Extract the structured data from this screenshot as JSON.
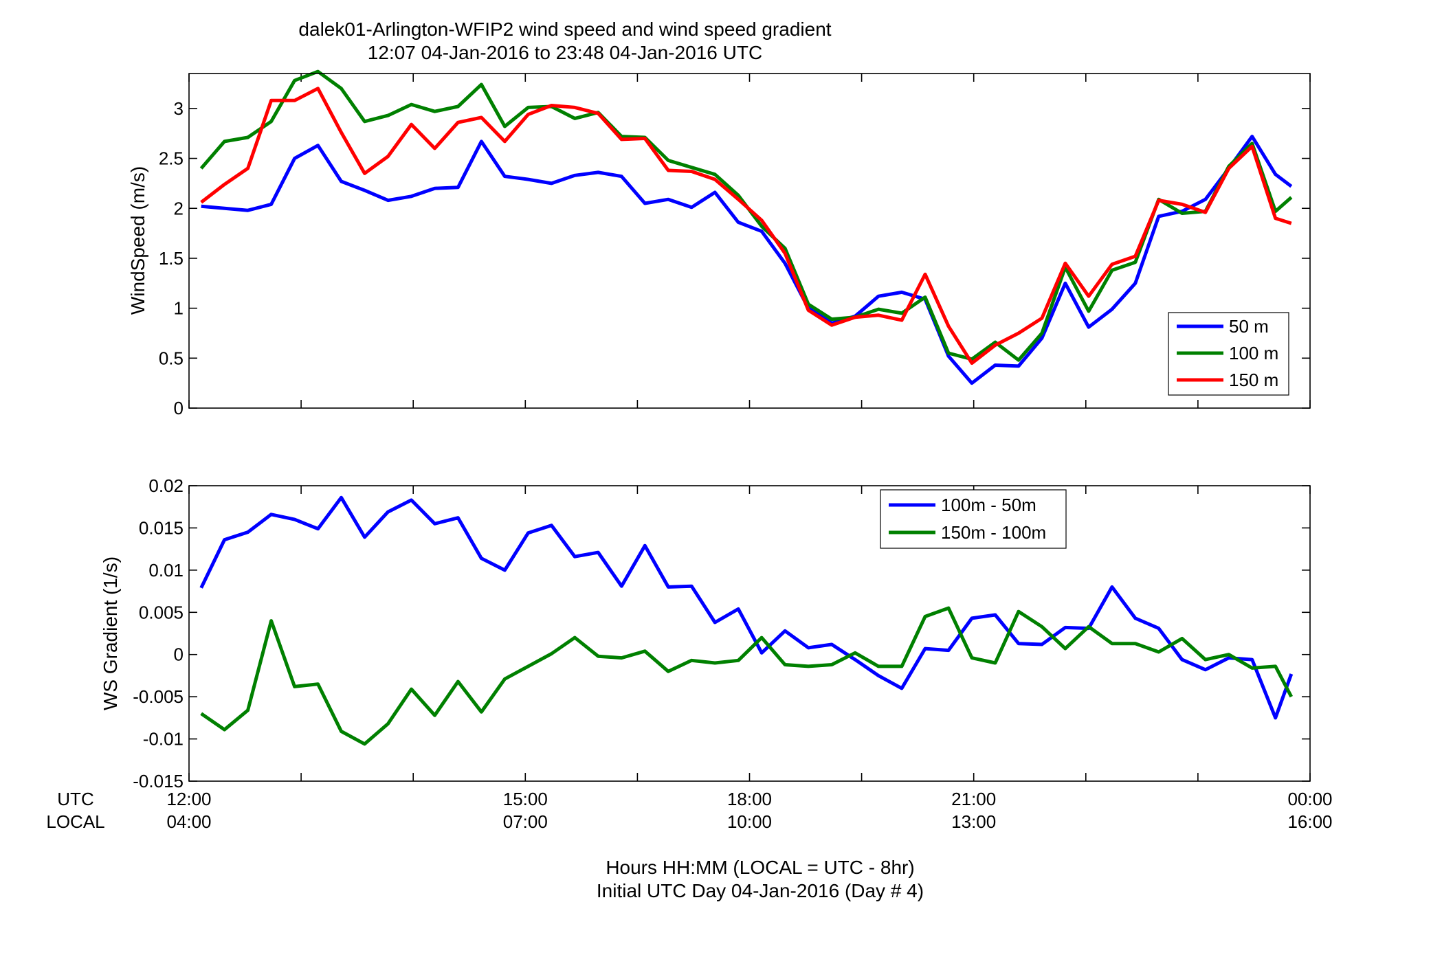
{
  "figure": {
    "title_lines": [
      "dalek01-Arlington-WFIP2  wind speed and wind speed gradient",
      "12:07 04-Jan-2016 to 23:48 04-Jan-2016  UTC"
    ],
    "xlabel_lines": [
      "Hours HH:MM  (LOCAL = UTC - 8hr)",
      "Initial UTC Day 04-Jan-2016 (Day # 4)"
    ],
    "row_labels": [
      "UTC",
      "LOCAL"
    ]
  },
  "chart_data": [
    {
      "type": "line",
      "ylabel": "WindSpeed (m/s)",
      "xlim": [
        12,
        24
      ],
      "ylim": [
        0,
        3.35
      ],
      "yticks": [
        0,
        0.5,
        1,
        1.5,
        2,
        2.5,
        3
      ],
      "ytick_labels": [
        "0",
        "0.5",
        "1",
        "1.5",
        "2",
        "2.5",
        "3"
      ],
      "xticks_utc": [
        12,
        13.2,
        14.4,
        15.6,
        16.8,
        18,
        19.2,
        20.4,
        21.6,
        22.8,
        24
      ],
      "xtick_labels_utc": [
        "12:00",
        "",
        "",
        "15:00",
        "",
        "18:00",
        "",
        "21:00",
        "",
        "",
        "00:00"
      ],
      "xtick_labels_local": [
        "04:00",
        "",
        "",
        "07:00",
        "",
        "10:00",
        "",
        "13:00",
        "",
        "",
        "16:00"
      ],
      "legend_position": "bottom-right",
      "x": [
        12.13,
        12.38,
        12.63,
        12.88,
        13.13,
        13.38,
        13.63,
        13.88,
        14.13,
        14.38,
        14.63,
        14.88,
        15.13,
        15.38,
        15.63,
        15.88,
        16.13,
        16.38,
        16.63,
        16.88,
        17.13,
        17.38,
        17.63,
        17.88,
        18.13,
        18.38,
        18.63,
        18.88,
        19.13,
        19.38,
        19.63,
        19.88,
        20.13,
        20.38,
        20.63,
        20.88,
        21.13,
        21.38,
        21.63,
        21.88,
        22.13,
        22.38,
        22.63,
        22.88,
        23.13,
        23.38,
        23.63,
        23.8
      ],
      "series": [
        {
          "name": "50 m",
          "color": "#0000ff",
          "values": [
            2.02,
            2.0,
            1.98,
            2.04,
            2.5,
            2.63,
            2.27,
            2.18,
            2.08,
            2.12,
            2.2,
            2.21,
            2.67,
            2.32,
            2.29,
            2.25,
            2.33,
            2.36,
            2.32,
            2.05,
            2.09,
            2.01,
            2.16,
            1.86,
            1.77,
            1.45,
            1.0,
            0.85,
            0.92,
            1.12,
            1.16,
            1.09,
            0.52,
            0.25,
            0.43,
            0.42,
            0.7,
            1.25,
            0.81,
            0.99,
            1.25,
            1.92,
            1.97,
            2.09,
            2.4,
            2.72,
            2.34,
            2.22
          ]
        },
        {
          "name": "100 m",
          "color": "#008000",
          "values": [
            2.4,
            2.67,
            2.71,
            2.87,
            3.28,
            3.37,
            3.2,
            2.87,
            2.93,
            3.04,
            2.97,
            3.02,
            3.24,
            2.82,
            3.01,
            3.02,
            2.9,
            2.96,
            2.72,
            2.71,
            2.48,
            2.41,
            2.34,
            2.13,
            1.82,
            1.6,
            1.04,
            0.89,
            0.91,
            0.99,
            0.95,
            1.11,
            0.55,
            0.49,
            0.66,
            0.48,
            0.75,
            1.41,
            0.97,
            1.38,
            1.46,
            2.09,
            1.95,
            1.97,
            2.42,
            2.65,
            1.97,
            2.11
          ]
        },
        {
          "name": "150 m",
          "color": "#ff0000",
          "values": [
            2.06,
            2.24,
            2.4,
            3.08,
            3.08,
            3.2,
            2.76,
            2.35,
            2.52,
            2.84,
            2.6,
            2.86,
            2.91,
            2.67,
            2.94,
            3.03,
            3.01,
            2.95,
            2.69,
            2.7,
            2.38,
            2.37,
            2.29,
            2.09,
            1.88,
            1.55,
            0.98,
            0.83,
            0.91,
            0.93,
            0.88,
            1.34,
            0.82,
            0.45,
            0.63,
            0.75,
            0.9,
            1.45,
            1.12,
            1.44,
            1.52,
            2.08,
            2.04,
            1.96,
            2.4,
            2.62,
            1.9,
            1.85
          ]
        }
      ]
    },
    {
      "type": "line",
      "ylabel": "WS Gradient (1/s)",
      "xlim": [
        12,
        24
      ],
      "ylim": [
        -0.015,
        0.02
      ],
      "yticks": [
        -0.015,
        -0.01,
        -0.005,
        0,
        0.005,
        0.01,
        0.015,
        0.02
      ],
      "ytick_labels": [
        "-0.015",
        "-0.01",
        "-0.005",
        "0",
        "0.005",
        "0.01",
        "0.015",
        "0.02"
      ],
      "xticks_utc": [
        12,
        13.2,
        14.4,
        15.6,
        16.8,
        18,
        19.2,
        20.4,
        21.6,
        22.8,
        24
      ],
      "legend_position": "top-right",
      "x": [
        12.13,
        12.38,
        12.63,
        12.88,
        13.13,
        13.38,
        13.63,
        13.88,
        14.13,
        14.38,
        14.63,
        14.88,
        15.13,
        15.38,
        15.63,
        15.88,
        16.13,
        16.38,
        16.63,
        16.88,
        17.13,
        17.38,
        17.63,
        17.88,
        18.13,
        18.38,
        18.63,
        18.88,
        19.13,
        19.38,
        19.63,
        19.88,
        20.13,
        20.38,
        20.63,
        20.88,
        21.13,
        21.38,
        21.63,
        21.88,
        22.13,
        22.38,
        22.63,
        22.88,
        23.13,
        23.38,
        23.63,
        23.8
      ],
      "series": [
        {
          "name": "100m - 50m",
          "color": "#0000ff",
          "values": [
            0.0079,
            0.0136,
            0.0145,
            0.0166,
            0.016,
            0.0149,
            0.0186,
            0.0139,
            0.0169,
            0.0183,
            0.0155,
            0.0162,
            0.0114,
            0.01,
            0.0144,
            0.0153,
            0.0116,
            0.0121,
            0.0081,
            0.0129,
            0.008,
            0.0081,
            0.0038,
            0.0054,
            0.0002,
            0.0028,
            0.0008,
            0.0012,
            -0.0006,
            -0.0025,
            -0.004,
            0.0007,
            0.0005,
            0.0043,
            0.0047,
            0.0013,
            0.0012,
            0.0032,
            0.0031,
            0.008,
            0.0043,
            0.0031,
            -0.0006,
            -0.0018,
            -0.0004,
            -0.0006,
            -0.0075,
            -0.0023
          ]
        },
        {
          "name": "150m - 100m",
          "color": "#008000",
          "values": [
            -0.007,
            -0.0089,
            -0.0066,
            0.004,
            -0.0038,
            -0.0035,
            -0.0091,
            -0.0106,
            -0.0082,
            -0.0041,
            -0.0072,
            -0.0032,
            -0.0068,
            -0.0029,
            -0.0014,
            0.0001,
            0.002,
            -0.0002,
            -0.0004,
            0.0004,
            -0.002,
            -0.0007,
            -0.001,
            -0.0007,
            0.002,
            -0.0012,
            -0.0014,
            -0.0012,
            0.0002,
            -0.0014,
            -0.0014,
            0.0045,
            0.0055,
            -0.0004,
            -0.001,
            0.0051,
            0.0033,
            0.0007,
            0.0033,
            0.0013,
            0.0013,
            0.0003,
            0.0019,
            -0.0006,
            0.0,
            -0.0016,
            -0.0014,
            -0.005
          ]
        }
      ]
    }
  ]
}
